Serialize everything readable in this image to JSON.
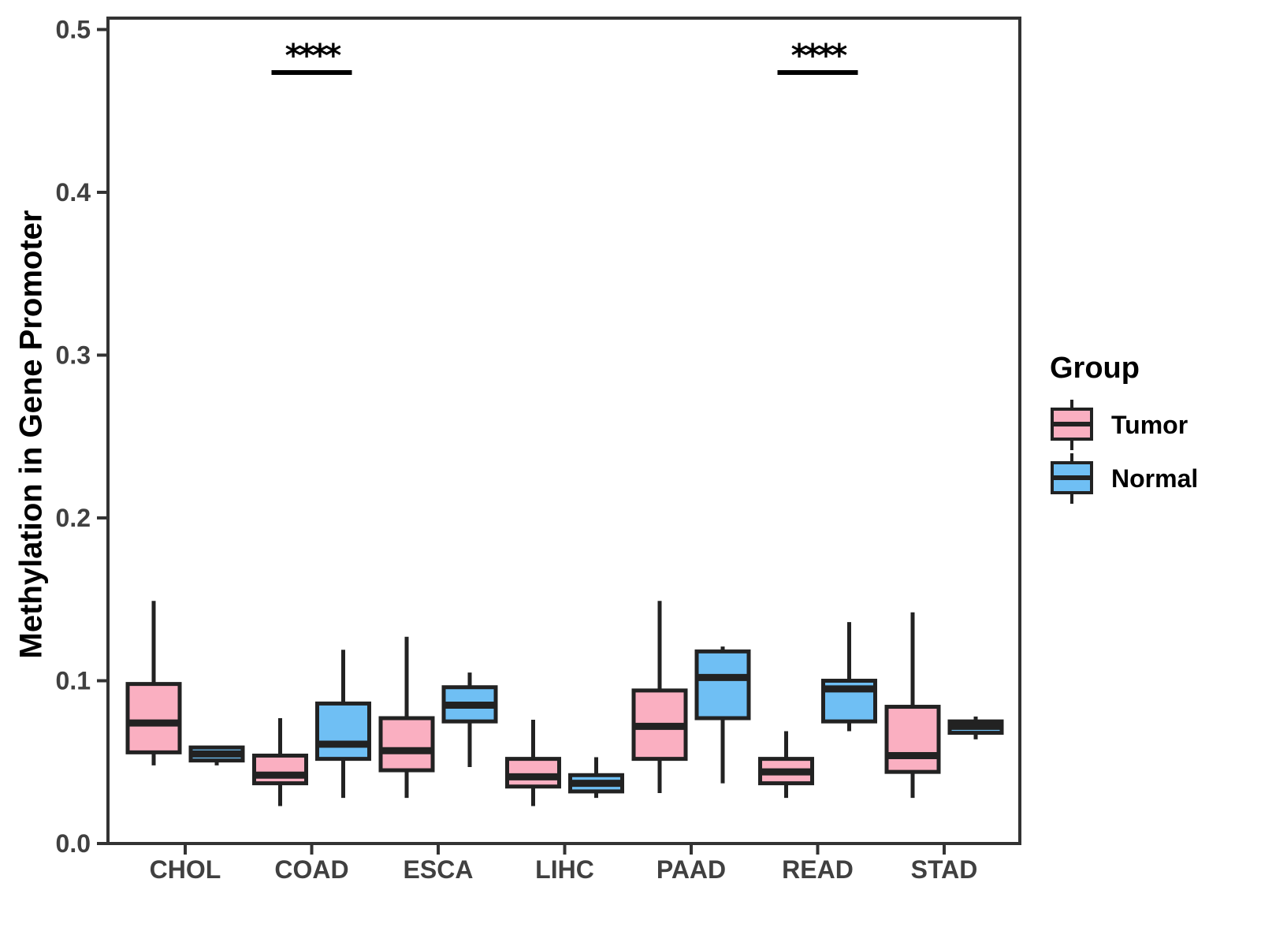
{
  "chart_data": {
    "type": "boxplot",
    "title": "",
    "xlabel": "",
    "ylabel": "Methylation in Gene Promoter",
    "ylim": [
      0,
      0.5
    ],
    "yticks": [
      "0.0",
      "0.1",
      "0.2",
      "0.3",
      "0.4",
      "0.5"
    ],
    "categories": [
      "CHOL",
      "COAD",
      "ESCA",
      "LIHC",
      "PAAD",
      "READ",
      "STAD"
    ],
    "grid": false,
    "legend": {
      "title": "Group",
      "position": "right"
    },
    "series": [
      {
        "name": "Tumor",
        "color": "#FAAFC1",
        "boxes": [
          {
            "min": 0.048,
            "q1": 0.056,
            "median": 0.074,
            "q3": 0.098,
            "max": 0.149
          },
          {
            "min": 0.023,
            "q1": 0.037,
            "median": 0.042,
            "q3": 0.054,
            "max": 0.077
          },
          {
            "min": 0.028,
            "q1": 0.045,
            "median": 0.057,
            "q3": 0.077,
            "max": 0.127
          },
          {
            "min": 0.023,
            "q1": 0.035,
            "median": 0.041,
            "q3": 0.052,
            "max": 0.076
          },
          {
            "min": 0.031,
            "q1": 0.052,
            "median": 0.072,
            "q3": 0.094,
            "max": 0.149
          },
          {
            "min": 0.028,
            "q1": 0.037,
            "median": 0.044,
            "q3": 0.052,
            "max": 0.069
          },
          {
            "min": 0.028,
            "q1": 0.044,
            "median": 0.054,
            "q3": 0.084,
            "max": 0.142
          }
        ]
      },
      {
        "name": "Normal",
        "color": "#6FBFF4",
        "boxes": [
          {
            "min": 0.048,
            "q1": 0.051,
            "median": 0.055,
            "q3": 0.059,
            "max": 0.06
          },
          {
            "min": 0.028,
            "q1": 0.052,
            "median": 0.061,
            "q3": 0.086,
            "max": 0.119
          },
          {
            "min": 0.047,
            "q1": 0.075,
            "median": 0.085,
            "q3": 0.096,
            "max": 0.105
          },
          {
            "min": 0.028,
            "q1": 0.032,
            "median": 0.037,
            "q3": 0.042,
            "max": 0.053
          },
          {
            "min": 0.037,
            "q1": 0.077,
            "median": 0.102,
            "q3": 0.118,
            "max": 0.121
          },
          {
            "min": 0.069,
            "q1": 0.075,
            "median": 0.095,
            "q3": 0.1,
            "max": 0.136
          },
          {
            "min": 0.064,
            "q1": 0.068,
            "median": 0.072,
            "q3": 0.075,
            "max": 0.078
          }
        ]
      }
    ],
    "annotations": [
      {
        "category": "COAD",
        "label": "****"
      },
      {
        "category": "READ",
        "label": "****"
      }
    ],
    "style": {
      "box_border": "#222222",
      "axis_line": "#333333",
      "tick_text": "#404040",
      "annotation_color": "#000000",
      "background": "#ffffff"
    }
  }
}
